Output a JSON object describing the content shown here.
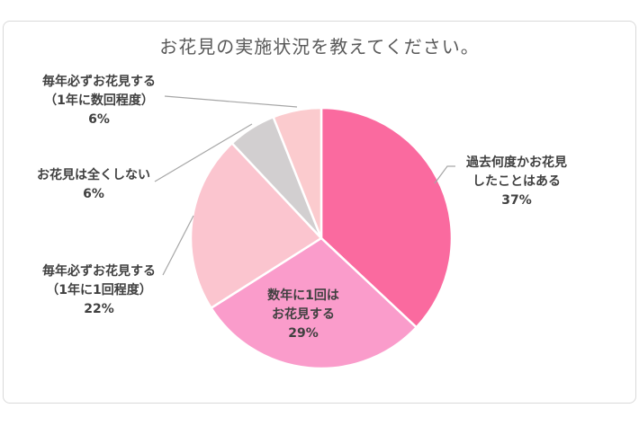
{
  "title": "お花見の実施状況を教えてください。",
  "chart_data": {
    "type": "pie",
    "title": "お花見の実施状況を教えてください。",
    "start_angle_deg": 0,
    "direction": "clockwise",
    "unit": "%",
    "legend": "none",
    "slices": [
      {
        "label": "過去何度かお花見したことはある",
        "value": 37,
        "color": "#FA6A9F"
      },
      {
        "label": "数年に1回はお花見する",
        "value": 29,
        "color": "#FA9CCB"
      },
      {
        "label": "毎年必ずお花見する（1年に1回程度）",
        "value": 22,
        "color": "#FBC5CF"
      },
      {
        "label": "お花見は全くしない",
        "value": 6,
        "color": "#D2CFD0"
      },
      {
        "label": "毎年必ずお花見する（1年に数回程度）",
        "value": 6,
        "color": "#FBCBCE"
      }
    ]
  },
  "labels": {
    "freq_several_per_year": {
      "line1": "毎年必ずお花見する",
      "line2": "（1年に数回程度）",
      "pct": "6%"
    },
    "never": {
      "line1": "お花見は全くしない",
      "pct": "6%"
    },
    "once_per_year": {
      "line1": "毎年必ずお花見する",
      "line2": "（1年に1回程度）",
      "pct": "22%"
    },
    "past_sometimes": {
      "line1": "過去何度かお花見",
      "line2": "したことはある",
      "pct": "37%"
    },
    "once_in_years": {
      "line1": "数年に1回は",
      "line2": "お花見する",
      "pct": "29%"
    }
  },
  "style": {
    "slice_border_color": "#ffffff",
    "leader_line_color": "#a6a6a6",
    "title_color": "#595959",
    "label_color": "#404040",
    "card_border_color": "#d9d9d9"
  }
}
